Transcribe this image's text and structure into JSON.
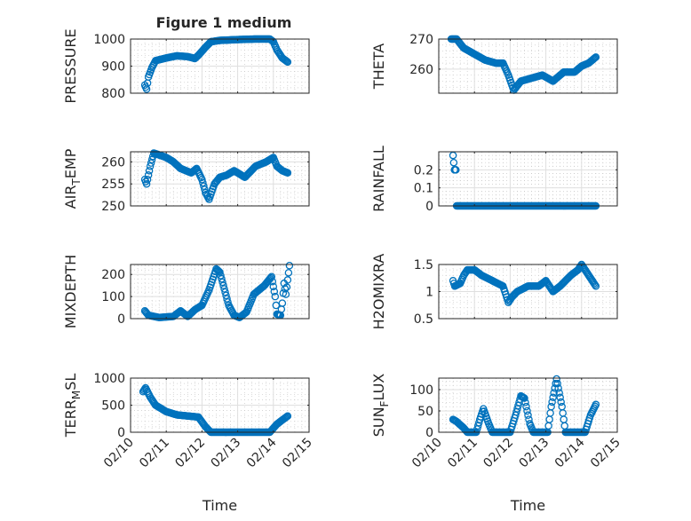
{
  "figure_title": "Figure 1 medium",
  "chart_data": [
    {
      "type": "scatter",
      "ylabel": "PRESSURE",
      "ylim": [
        800,
        1000
      ],
      "yticks": [
        800,
        900,
        1000
      ],
      "xlim": [
        10,
        15
      ],
      "xticks": [
        10,
        11,
        12,
        13,
        14,
        15
      ],
      "xticklabels": [
        "02/10",
        "02/11",
        "02/12",
        "02/13",
        "02/14",
        "02/15"
      ],
      "xlabel": "",
      "grid": true,
      "title": "Figure 1 medium",
      "points": [
        [
          10.4,
          830
        ],
        [
          10.45,
          815
        ],
        [
          10.5,
          860
        ],
        [
          10.6,
          895
        ],
        [
          10.7,
          920
        ],
        [
          11.0,
          930
        ],
        [
          11.3,
          938
        ],
        [
          11.6,
          935
        ],
        [
          11.8,
          928
        ],
        [
          11.9,
          940
        ],
        [
          12.1,
          970
        ],
        [
          12.25,
          990
        ],
        [
          12.5,
          995
        ],
        [
          13.0,
          998
        ],
        [
          13.5,
          1000
        ],
        [
          13.9,
          1000
        ],
        [
          14.0,
          990
        ],
        [
          14.1,
          960
        ],
        [
          14.25,
          930
        ],
        [
          14.4,
          915
        ]
      ]
    },
    {
      "type": "scatter",
      "ylabel": "THETA",
      "ylim": [
        252,
        270
      ],
      "yticks": [
        260,
        270
      ],
      "xlim": [
        10,
        15
      ],
      "xticks": [
        10,
        11,
        12,
        13,
        14,
        15
      ],
      "xticklabels": [
        "02/10",
        "02/11",
        "02/12",
        "02/13",
        "02/14",
        "02/15"
      ],
      "xlabel": "",
      "grid": true,
      "points": [
        [
          10.35,
          270
        ],
        [
          10.5,
          270
        ],
        [
          10.7,
          267
        ],
        [
          11.0,
          265
        ],
        [
          11.3,
          263
        ],
        [
          11.6,
          262
        ],
        [
          11.8,
          262
        ],
        [
          11.95,
          258
        ],
        [
          12.1,
          253
        ],
        [
          12.3,
          256
        ],
        [
          12.6,
          257
        ],
        [
          12.9,
          258
        ],
        [
          13.2,
          256
        ],
        [
          13.5,
          259
        ],
        [
          13.8,
          259
        ],
        [
          14.0,
          261
        ],
        [
          14.2,
          262
        ],
        [
          14.4,
          264
        ]
      ]
    },
    {
      "type": "scatter",
      "ylabel": "AIR_TEMP",
      "ylim": [
        250,
        262.3
      ],
      "yticks": [
        250,
        255,
        260
      ],
      "xlim": [
        10,
        15
      ],
      "xticks": [
        10,
        11,
        12,
        13,
        14,
        15
      ],
      "xticklabels": [
        "02/10",
        "02/11",
        "02/12",
        "02/13",
        "02/14",
        "02/15"
      ],
      "xlabel": "",
      "grid": true,
      "points": [
        [
          10.4,
          256
        ],
        [
          10.45,
          255
        ],
        [
          10.5,
          257
        ],
        [
          10.55,
          259
        ],
        [
          10.65,
          262
        ],
        [
          11.0,
          261
        ],
        [
          11.2,
          260
        ],
        [
          11.4,
          258.5
        ],
        [
          11.7,
          257.5
        ],
        [
          11.85,
          258.5
        ],
        [
          12.0,
          256
        ],
        [
          12.1,
          253
        ],
        [
          12.2,
          251.5
        ],
        [
          12.35,
          255
        ],
        [
          12.5,
          256.5
        ],
        [
          12.7,
          257
        ],
        [
          12.9,
          258
        ],
        [
          13.2,
          256.5
        ],
        [
          13.5,
          259
        ],
        [
          13.8,
          260
        ],
        [
          14.0,
          261
        ],
        [
          14.1,
          259
        ],
        [
          14.25,
          258
        ],
        [
          14.4,
          257.5
        ]
      ]
    },
    {
      "type": "scatter",
      "ylabel": "RAINFALL",
      "ylim": [
        0,
        0.3
      ],
      "yticks": [
        0,
        0.1,
        0.2
      ],
      "xlim": [
        10,
        15
      ],
      "xticks": [
        10,
        11,
        12,
        13,
        14,
        15
      ],
      "xticklabels": [
        "02/10",
        "02/11",
        "02/12",
        "02/13",
        "02/14",
        "02/15"
      ],
      "xlabel": "",
      "grid": true,
      "points": [
        [
          10.4,
          0.28
        ],
        [
          10.44,
          0.2
        ],
        [
          10.48,
          0.2
        ],
        [
          10.5,
          0
        ],
        [
          14.4,
          0
        ]
      ]
    },
    {
      "type": "scatter",
      "ylabel": "MIXDEPTH",
      "ylim": [
        0,
        245
      ],
      "yticks": [
        0,
        100,
        200
      ],
      "xlim": [
        10,
        15
      ],
      "xticks": [
        10,
        11,
        12,
        13,
        14,
        15
      ],
      "xticklabels": [
        "02/10",
        "02/11",
        "02/12",
        "02/13",
        "02/14",
        "02/15"
      ],
      "xlabel": "",
      "grid": true,
      "points": [
        [
          10.4,
          35
        ],
        [
          10.5,
          15
        ],
        [
          10.8,
          5
        ],
        [
          11.2,
          10
        ],
        [
          11.4,
          35
        ],
        [
          11.6,
          10
        ],
        [
          11.8,
          40
        ],
        [
          12.0,
          60
        ],
        [
          12.2,
          130
        ],
        [
          12.4,
          225
        ],
        [
          12.5,
          210
        ],
        [
          12.6,
          150
        ],
        [
          12.75,
          60
        ],
        [
          12.9,
          15
        ],
        [
          13.05,
          5
        ],
        [
          13.25,
          30
        ],
        [
          13.45,
          110
        ],
        [
          13.6,
          130
        ],
        [
          13.75,
          150
        ],
        [
          13.95,
          190
        ],
        [
          14.05,
          100
        ],
        [
          14.1,
          20
        ],
        [
          14.2,
          15
        ],
        [
          14.25,
          70
        ],
        [
          14.3,
          160
        ],
        [
          14.35,
          110
        ],
        [
          14.45,
          240
        ]
      ]
    },
    {
      "type": "scatter",
      "ylabel": "H2OMIXRA",
      "ylim": [
        0.5,
        1.5
      ],
      "yticks": [
        0.5,
        1,
        1.5
      ],
      "xlim": [
        10,
        15
      ],
      "xticks": [
        10,
        11,
        12,
        13,
        14,
        15
      ],
      "xticklabels": [
        "02/10",
        "02/11",
        "02/12",
        "02/13",
        "02/14",
        "02/15"
      ],
      "xlabel": "",
      "grid": true,
      "points": [
        [
          10.4,
          1.2
        ],
        [
          10.45,
          1.1
        ],
        [
          10.6,
          1.15
        ],
        [
          10.7,
          1.3
        ],
        [
          10.8,
          1.4
        ],
        [
          11.0,
          1.4
        ],
        [
          11.2,
          1.3
        ],
        [
          11.5,
          1.2
        ],
        [
          11.8,
          1.1
        ],
        [
          11.95,
          0.8
        ],
        [
          12.05,
          0.9
        ],
        [
          12.2,
          1.0
        ],
        [
          12.5,
          1.1
        ],
        [
          12.8,
          1.1
        ],
        [
          13.0,
          1.2
        ],
        [
          13.2,
          1.0
        ],
        [
          13.4,
          1.1
        ],
        [
          13.7,
          1.3
        ],
        [
          13.9,
          1.4
        ],
        [
          14.0,
          1.5
        ],
        [
          14.2,
          1.3
        ],
        [
          14.4,
          1.1
        ]
      ]
    },
    {
      "type": "scatter",
      "ylabel": "TERR_MSL",
      "ylim": [
        0,
        1000
      ],
      "yticks": [
        0,
        500,
        1000
      ],
      "xlim": [
        10,
        15
      ],
      "xticks": [
        10,
        11,
        12,
        13,
        14,
        15
      ],
      "xticklabels": [
        "02/10",
        "02/11",
        "02/12",
        "02/13",
        "02/14",
        "02/15"
      ],
      "xlabel": "Time",
      "grid": true,
      "points": [
        [
          10.35,
          750
        ],
        [
          10.42,
          820
        ],
        [
          10.55,
          650
        ],
        [
          10.7,
          500
        ],
        [
          11.0,
          380
        ],
        [
          11.3,
          320
        ],
        [
          11.6,
          300
        ],
        [
          11.9,
          280
        ],
        [
          12.1,
          100
        ],
        [
          12.25,
          0
        ],
        [
          13.9,
          0
        ],
        [
          14.1,
          150
        ],
        [
          14.4,
          300
        ]
      ]
    },
    {
      "type": "scatter",
      "ylabel": "SUN_FLUX",
      "ylim": [
        0,
        127
      ],
      "yticks": [
        0,
        50,
        100
      ],
      "xlim": [
        10,
        15
      ],
      "xticks": [
        10,
        11,
        12,
        13,
        14,
        15
      ],
      "xticklabels": [
        "02/10",
        "02/11",
        "02/12",
        "02/13",
        "02/14",
        "02/15"
      ],
      "xlabel": "Time",
      "grid": true,
      "points": [
        [
          10.4,
          30
        ],
        [
          10.5,
          25
        ],
        [
          10.7,
          10
        ],
        [
          10.8,
          0
        ],
        [
          11.05,
          0
        ],
        [
          11.15,
          30
        ],
        [
          11.25,
          55
        ],
        [
          11.4,
          20
        ],
        [
          11.5,
          0
        ],
        [
          12.0,
          0
        ],
        [
          12.15,
          40
        ],
        [
          12.3,
          85
        ],
        [
          12.4,
          80
        ],
        [
          12.55,
          20
        ],
        [
          12.65,
          0
        ],
        [
          13.05,
          0
        ],
        [
          13.15,
          60
        ],
        [
          13.3,
          125
        ],
        [
          13.45,
          60
        ],
        [
          13.55,
          0
        ],
        [
          14.1,
          0
        ],
        [
          14.25,
          40
        ],
        [
          14.4,
          65
        ]
      ]
    }
  ],
  "colors": {
    "marker": "#0072bd",
    "axis": "#262626",
    "grid": "#dfdfdf"
  }
}
